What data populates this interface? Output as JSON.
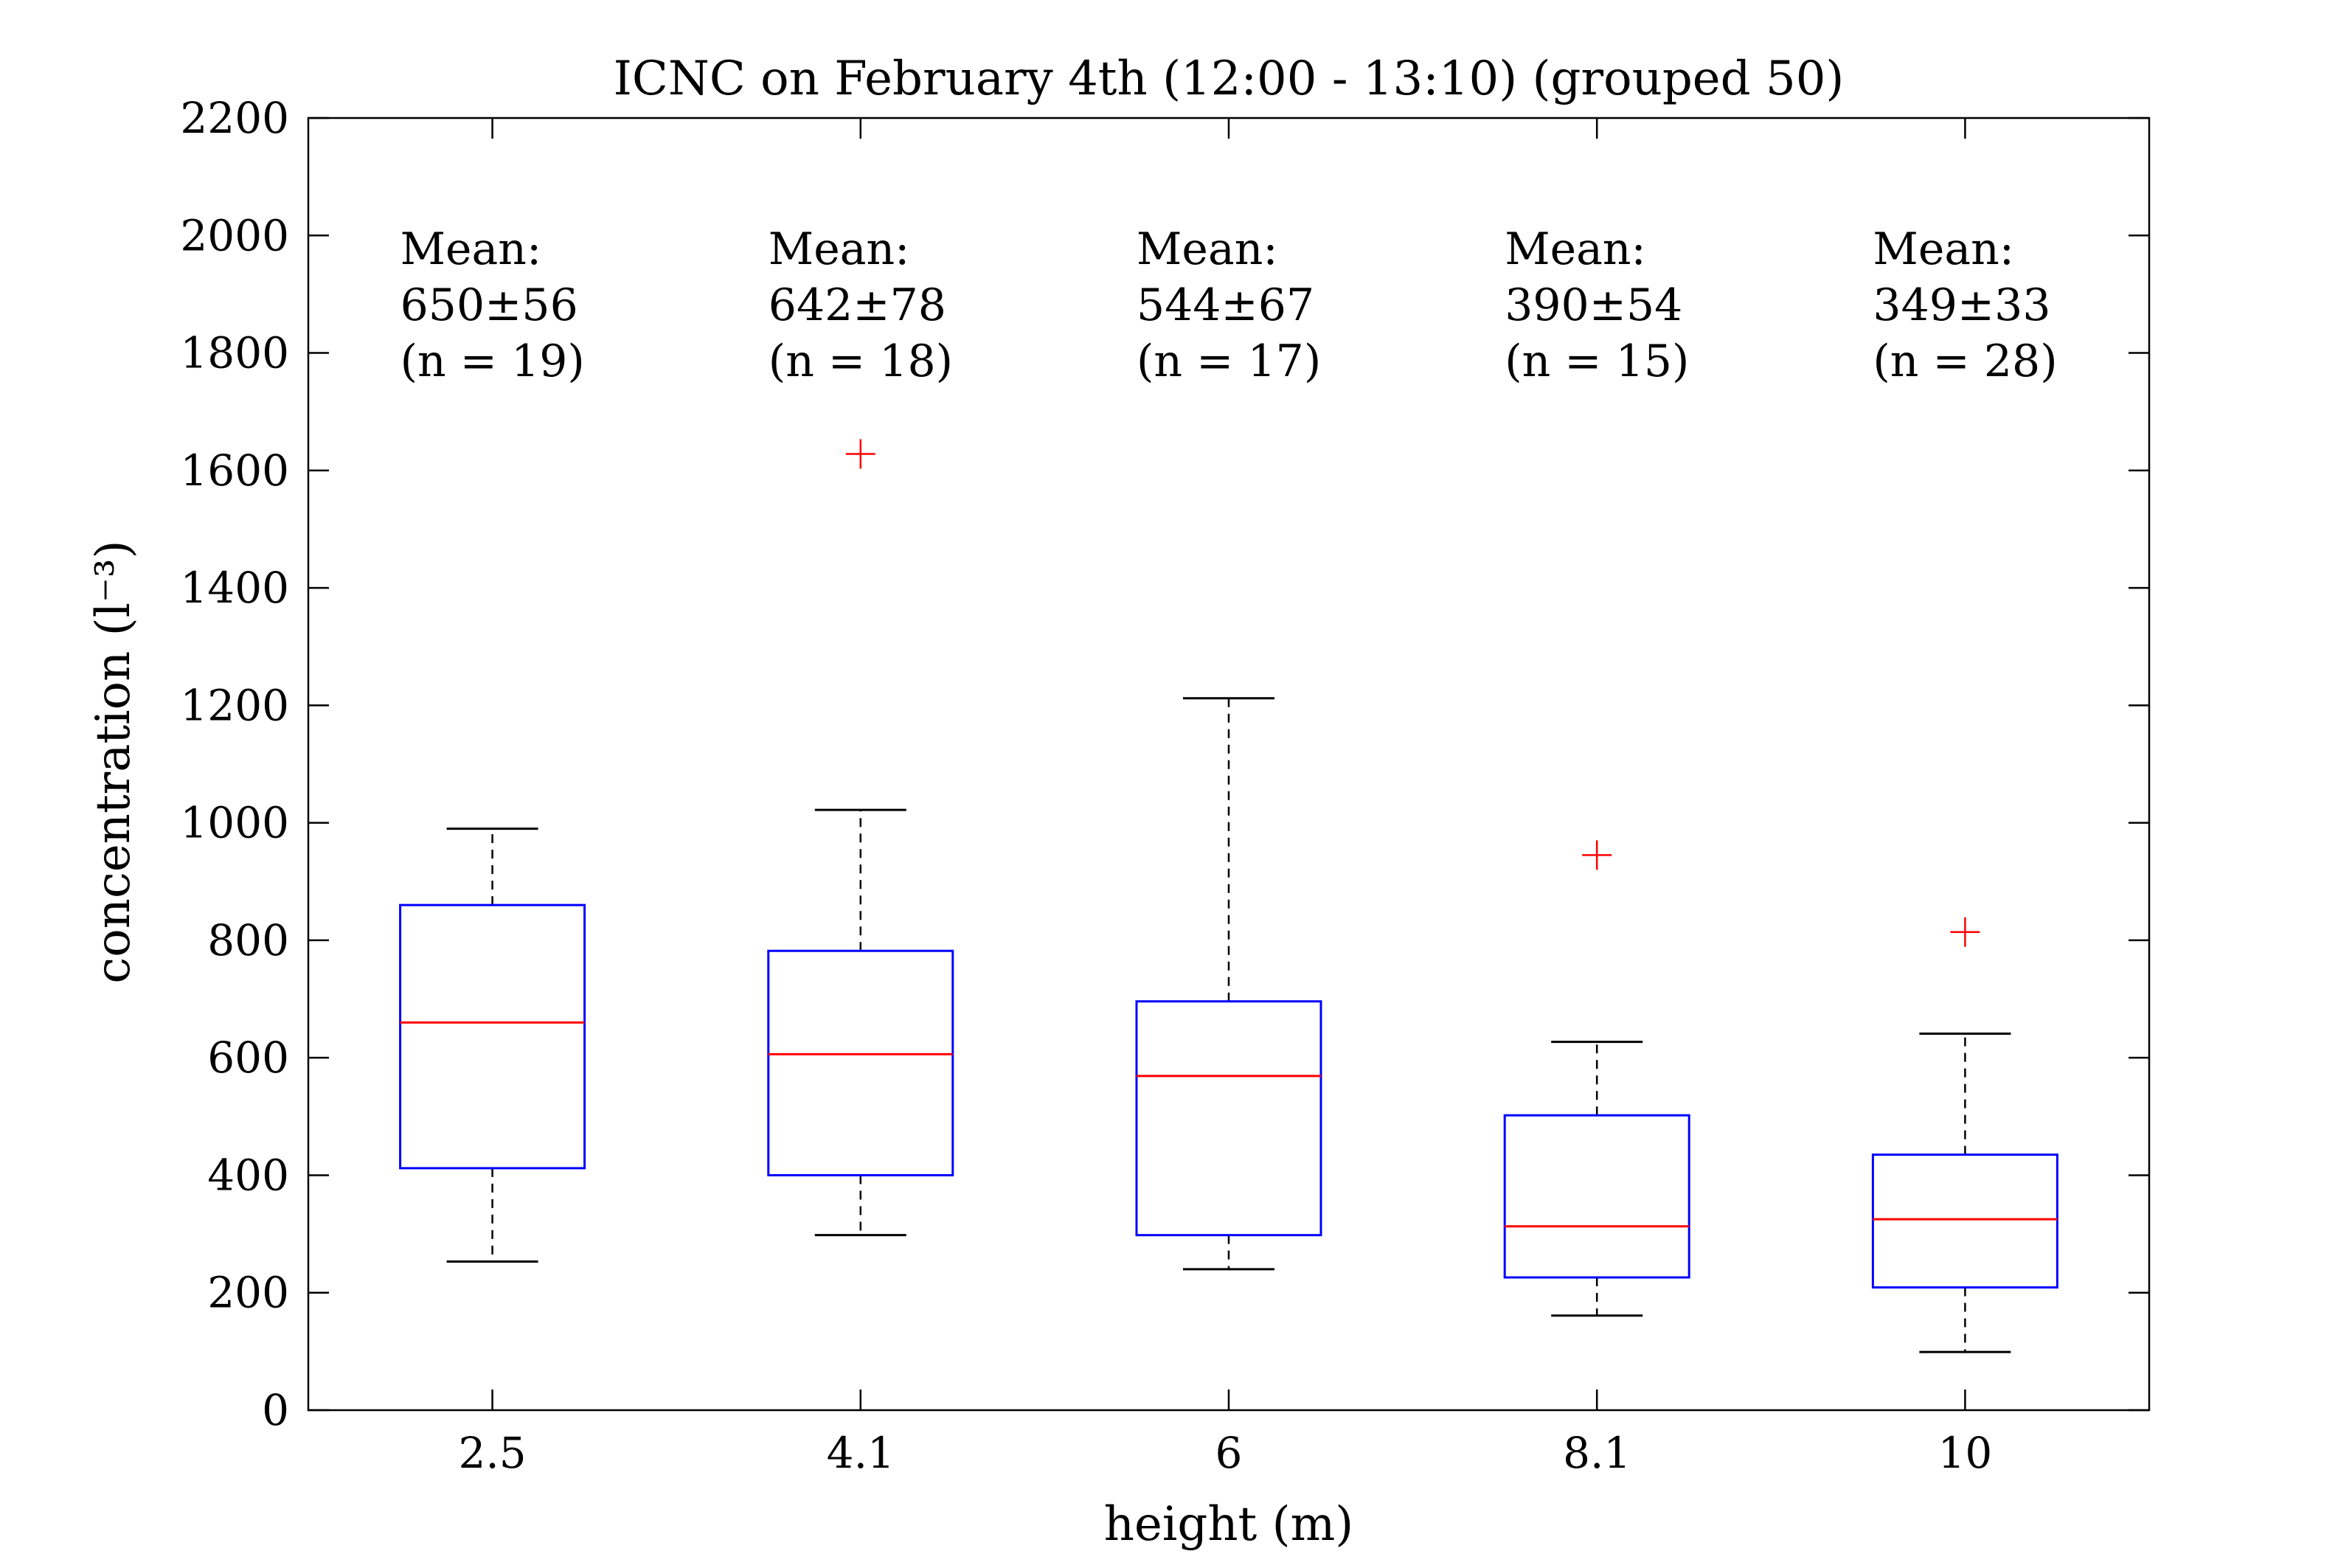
{
  "chart_data": {
    "type": "box",
    "title": "ICNC on February 4th (12:00 - 13:10) (grouped 50)",
    "xlabel": "height (m)",
    "ylabel": "concentration (l⁻³)",
    "ylim": [
      0,
      2200
    ],
    "yticks": [
      0,
      200,
      400,
      600,
      800,
      1000,
      1200,
      1400,
      1600,
      1800,
      2000,
      2200
    ],
    "categories": [
      "2.5",
      "4.1",
      "6",
      "8.1",
      "10"
    ],
    "boxes": [
      {
        "category": "2.5",
        "whisker_low": 253,
        "q1": 412,
        "median": 660,
        "q3": 860,
        "whisker_high": 990,
        "outliers": []
      },
      {
        "category": "4.1",
        "whisker_low": 298,
        "q1": 400,
        "median": 606,
        "q3": 782,
        "whisker_high": 1022,
        "outliers": [
          1628
        ]
      },
      {
        "category": "6",
        "whisker_low": 240,
        "q1": 298,
        "median": 569,
        "q3": 696,
        "whisker_high": 1212,
        "outliers": []
      },
      {
        "category": "8.1",
        "whisker_low": 161,
        "q1": 226,
        "median": 313,
        "q3": 502,
        "whisker_high": 627,
        "outliers": [
          945
        ]
      },
      {
        "category": "10",
        "whisker_low": 99,
        "q1": 209,
        "median": 325,
        "q3": 435,
        "whisker_high": 641,
        "outliers": [
          814
        ]
      }
    ],
    "annotations": [
      {
        "category": "2.5",
        "line1": "Mean:",
        "line2": "650±56",
        "line3": "(n = 19)"
      },
      {
        "category": "4.1",
        "line1": "Mean:",
        "line2": "642±78",
        "line3": "(n = 18)"
      },
      {
        "category": "6",
        "line1": "Mean:",
        "line2": "544±67",
        "line3": "(n = 17)"
      },
      {
        "category": "8.1",
        "line1": "Mean:",
        "line2": "390±54",
        "line3": "(n = 15)"
      },
      {
        "category": "10",
        "line1": "Mean:",
        "line2": "349±33",
        "line3": "(n = 28)"
      }
    ],
    "grid": false,
    "colors": {
      "box": "#0000ff",
      "median": "#ff0000",
      "outlier": "#ff0000",
      "whisker": "#000000"
    }
  }
}
